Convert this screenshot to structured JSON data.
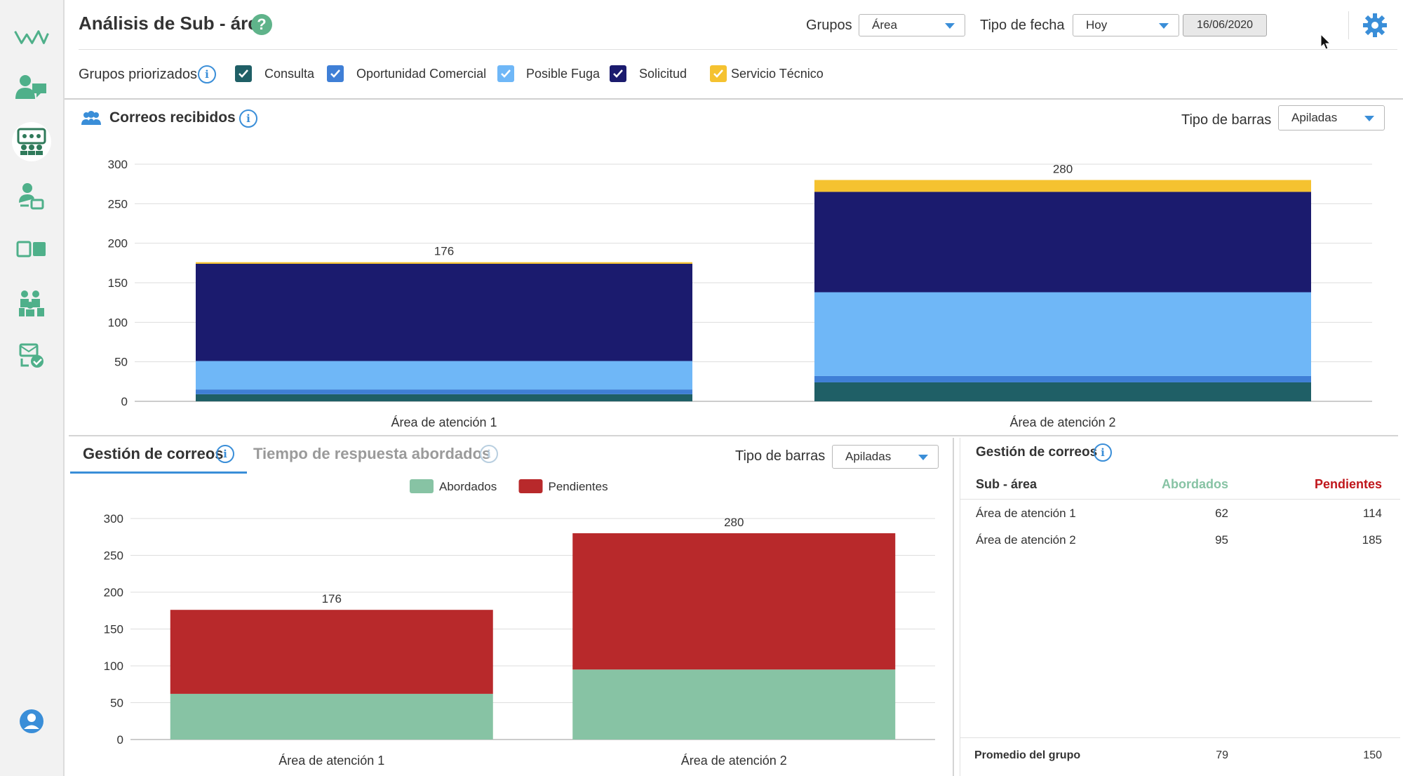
{
  "header": {
    "title": "Análisis de Sub - área",
    "groups_label": "Grupos",
    "groups_value": "Área",
    "date_type_label": "Tipo de fecha",
    "date_type_value": "Hoy",
    "date_value": "16/06/2020"
  },
  "filters": {
    "label": "Grupos priorizados",
    "items": [
      {
        "label": "Consulta",
        "color": "#1f5f66"
      },
      {
        "label": "Oportunidad Comercial",
        "color": "#3f7fd6"
      },
      {
        "label": "Posible Fuga",
        "color": "#6fb7f7"
      },
      {
        "label": "Solicitud",
        "color": "#1b1b6e"
      },
      {
        "label": "Servicio Técnico",
        "color": "#f5c230"
      }
    ]
  },
  "top_panel": {
    "title": "Correos recibidos",
    "bar_type_label": "Tipo de barras",
    "bar_type_value": "Apiladas"
  },
  "bottom_left": {
    "tab_active": "Gestión de correos",
    "tab_inactive": "Tiempo de respuesta abordados",
    "bar_type_label": "Tipo de barras",
    "bar_type_value": "Apiladas"
  },
  "table": {
    "title": "Gestión de correos",
    "headers": [
      "Sub - área",
      "Abordados",
      "Pendientes"
    ],
    "rows": [
      [
        "Área de atención 1",
        "62",
        "114"
      ],
      [
        "Área de atención 2",
        "95",
        "185"
      ]
    ],
    "footer": [
      "Promedio del grupo",
      "79",
      "150"
    ]
  },
  "chart_data": [
    {
      "type": "bar",
      "stacked": true,
      "title": "Correos recibidos",
      "categories": [
        "Área de atención 1",
        "Área de atención 2"
      ],
      "ylim": [
        0,
        300
      ],
      "yticks": [
        0,
        50,
        100,
        150,
        200,
        250,
        300
      ],
      "totals": [
        176,
        280
      ],
      "series": [
        {
          "name": "Consulta",
          "values": [
            9,
            24
          ],
          "color": "#1f5f66"
        },
        {
          "name": "Oportunidad Comercial",
          "values": [
            6,
            8
          ],
          "color": "#3f7fd6"
        },
        {
          "name": "Posible Fuga",
          "values": [
            36,
            106
          ],
          "color": "#6fb7f7"
        },
        {
          "name": "Solicitud",
          "values": [
            123,
            127
          ],
          "color": "#1b1b6e"
        },
        {
          "name": "Servicio Técnico",
          "values": [
            2,
            15
          ],
          "color": "#f5c230"
        }
      ],
      "grid": true
    },
    {
      "type": "bar",
      "stacked": true,
      "categories": [
        "Área de atención 1",
        "Área de atención 2"
      ],
      "ylim": [
        0,
        300
      ],
      "yticks": [
        0,
        50,
        100,
        150,
        200,
        250,
        300
      ],
      "totals": [
        176,
        280
      ],
      "legend": "top-center",
      "series": [
        {
          "name": "Abordados",
          "values": [
            62,
            95
          ],
          "color": "#87c3a4"
        },
        {
          "name": "Pendientes",
          "values": [
            114,
            185
          ],
          "color": "#b8292b"
        }
      ],
      "grid": true
    }
  ]
}
